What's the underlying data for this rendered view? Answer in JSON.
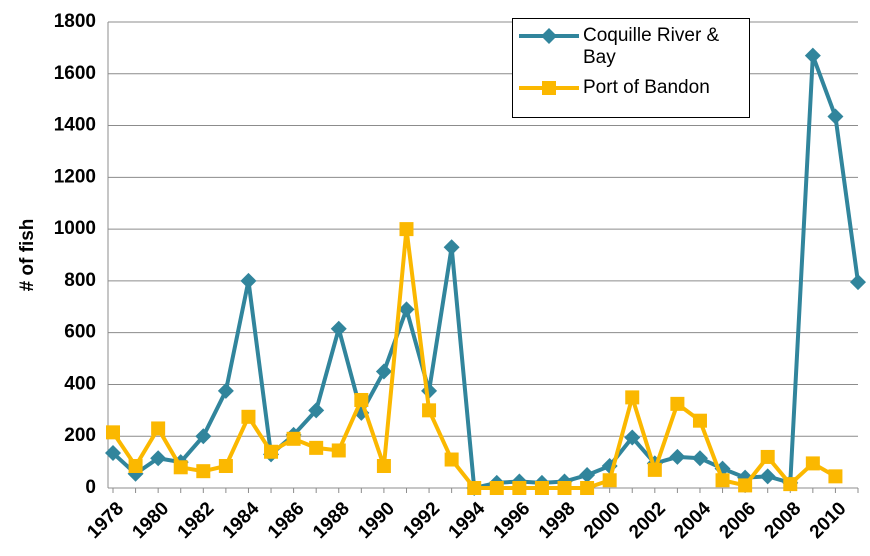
{
  "chart_data": {
    "type": "line",
    "y_label": "# of fish",
    "categories": [
      "1978",
      null,
      "1980",
      null,
      "1982",
      null,
      "1984",
      null,
      "1986",
      null,
      "1988",
      null,
      "1990",
      null,
      "1992",
      null,
      "1994",
      null,
      "1996",
      null,
      "1998",
      null,
      "2000",
      null,
      "2002",
      null,
      "2004",
      null,
      "2006",
      null,
      "2008",
      null,
      "2010",
      null
    ],
    "series": [
      {
        "name": "Coquille River & Bay",
        "color": "#31859c",
        "marker": "diamond",
        "values": [
          135,
          55,
          115,
          100,
          200,
          375,
          800,
          130,
          205,
          300,
          615,
          290,
          450,
          690,
          375,
          930,
          0,
          20,
          25,
          20,
          25,
          50,
          85,
          195,
          95,
          120,
          115,
          75,
          40,
          45,
          20,
          1670,
          1435,
          795
        ]
      },
      {
        "name": "Port of Bandon",
        "color": "#fbb800",
        "marker": "square",
        "values": [
          215,
          85,
          230,
          80,
          65,
          85,
          275,
          140,
          190,
          155,
          145,
          340,
          85,
          1000,
          300,
          110,
          0,
          0,
          0,
          0,
          0,
          0,
          30,
          350,
          70,
          325,
          260,
          30,
          10,
          120,
          15,
          95,
          45,
          null
        ]
      }
    ],
    "ylim": [
      0,
      1800
    ],
    "yticks": [
      0,
      200,
      400,
      600,
      800,
      1000,
      1200,
      1400,
      1600,
      1800
    ],
    "grid": true
  }
}
